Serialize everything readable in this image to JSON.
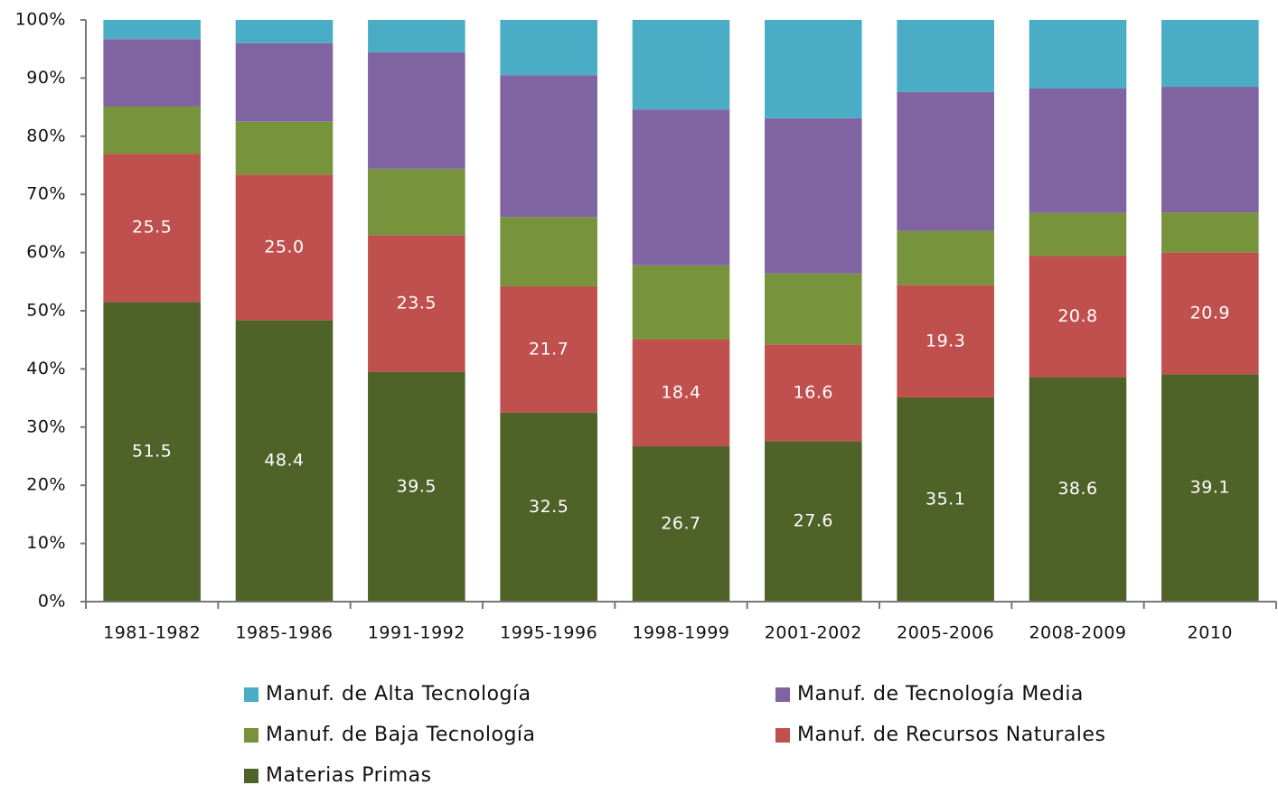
{
  "chart_data": {
    "type": "stacked_bar",
    "categories": [
      "1981-1982",
      "1985-1986",
      "1991-1992",
      "1995-1996",
      "1998-1999",
      "2001-2002",
      "2005-2006",
      "2008-2009",
      "2010"
    ],
    "series": [
      {
        "name": "Materias Primas",
        "color": "#4f6228",
        "values": [
          51.5,
          48.4,
          39.5,
          32.5,
          26.7,
          27.6,
          35.1,
          38.6,
          39.1
        ],
        "value_labels": [
          "51.5",
          "48.4",
          "39.5",
          "32.5",
          "26.7",
          "27.6",
          "35.1",
          "38.6",
          "39.1"
        ]
      },
      {
        "name": "Manuf. de Recursos Naturales",
        "color": "#c0504d",
        "values": [
          25.5,
          25.0,
          23.5,
          21.7,
          18.4,
          16.6,
          19.3,
          20.8,
          20.9
        ],
        "value_labels": [
          "25.5",
          "25.0",
          "23.5",
          "21.7",
          "18.4",
          "16.6",
          "19.3",
          "20.8",
          "20.9"
        ]
      },
      {
        "name": "Manuf. de Baja Tecnología",
        "color": "#77933c",
        "values": [
          8.1,
          9.1,
          11.4,
          11.9,
          12.7,
          12.2,
          9.3,
          7.4,
          6.9
        ]
      },
      {
        "name": "Manuf. de Tecnología Media",
        "color": "#8064a2",
        "values": [
          11.6,
          13.5,
          20.0,
          24.4,
          26.8,
          26.7,
          23.9,
          21.4,
          21.6
        ]
      },
      {
        "name": "Manuf. de Alta Tecnología",
        "color": "#4bacc6",
        "values": [
          3.3,
          4.0,
          5.6,
          9.5,
          15.4,
          16.9,
          12.4,
          11.8,
          11.5
        ]
      }
    ],
    "ylim": [
      0,
      100
    ],
    "yticks": [
      {
        "value": 0,
        "label": "0%"
      },
      {
        "value": 10,
        "label": "10%"
      },
      {
        "value": 20,
        "label": "20%"
      },
      {
        "value": 30,
        "label": "30%"
      },
      {
        "value": 40,
        "label": "40%"
      },
      {
        "value": 50,
        "label": "50%"
      },
      {
        "value": 60,
        "label": "60%"
      },
      {
        "value": 70,
        "label": "70%"
      },
      {
        "value": 80,
        "label": "80%"
      },
      {
        "value": 90,
        "label": "90%"
      },
      {
        "value": 100,
        "label": "100%"
      }
    ],
    "legend": "bottom"
  }
}
